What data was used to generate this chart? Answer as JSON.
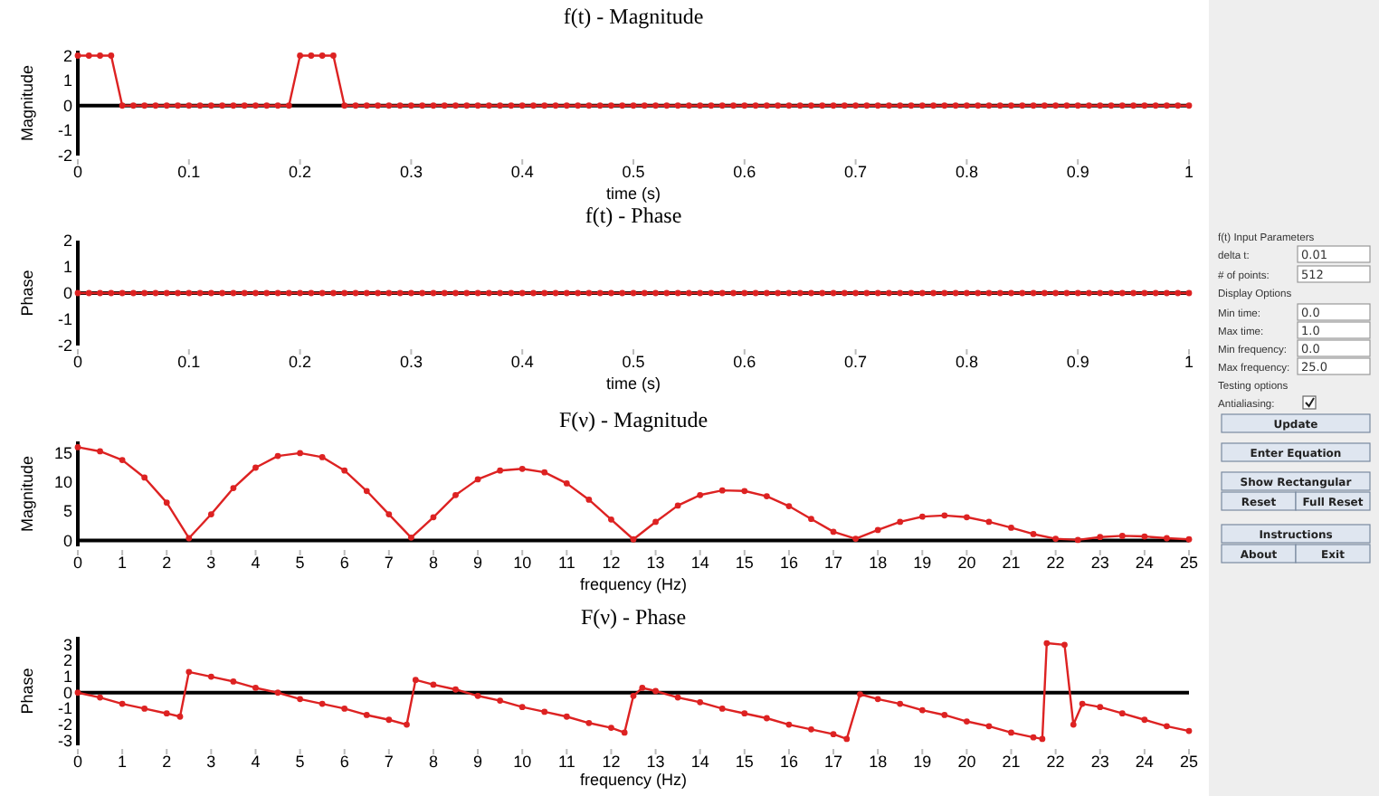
{
  "chart_data": [
    {
      "type": "line",
      "title": "f(t) - Magnitude",
      "xlabel": "time (s)",
      "ylabel": "Magnitude",
      "marker": "circle",
      "xlim": [
        0,
        1
      ],
      "ylim": [
        -2,
        2.2
      ],
      "xticks": [
        0,
        0.1,
        0.2,
        0.3,
        0.4,
        0.5,
        0.6,
        0.7,
        0.8,
        0.9,
        1
      ],
      "yticks": [
        -2,
        -1,
        0,
        1,
        2
      ],
      "x": [
        0,
        0.01,
        0.02,
        0.03,
        0.04,
        0.05,
        0.06,
        0.07,
        0.08,
        0.09,
        0.1,
        0.11,
        0.12,
        0.13,
        0.14,
        0.15,
        0.16,
        0.17,
        0.18,
        0.19,
        0.2,
        0.21,
        0.22,
        0.23,
        0.24,
        0.25,
        0.26,
        0.27,
        0.28,
        0.29,
        0.3,
        0.31,
        0.32,
        0.33,
        0.34,
        0.35,
        0.36,
        0.37,
        0.38,
        0.39,
        0.4,
        0.41,
        0.42,
        0.43,
        0.44,
        0.45,
        0.46,
        0.47,
        0.48,
        0.49,
        0.5,
        0.51,
        0.52,
        0.53,
        0.54,
        0.55,
        0.56,
        0.57,
        0.58,
        0.59,
        0.6,
        0.61,
        0.62,
        0.63,
        0.64,
        0.65,
        0.66,
        0.67,
        0.68,
        0.69,
        0.7,
        0.71,
        0.72,
        0.73,
        0.74,
        0.75,
        0.76,
        0.77,
        0.78,
        0.79,
        0.8,
        0.81,
        0.82,
        0.83,
        0.84,
        0.85,
        0.86,
        0.87,
        0.88,
        0.89,
        0.9,
        0.91,
        0.92,
        0.93,
        0.94,
        0.95,
        0.96,
        0.97,
        0.98,
        0.99,
        1
      ],
      "series": [
        {
          "color": "#dd2222",
          "values": [
            2,
            2,
            2,
            2,
            0,
            0,
            0,
            0,
            0,
            0,
            0,
            0,
            0,
            0,
            0,
            0,
            0,
            0,
            0,
            0,
            2,
            2,
            2,
            2,
            0,
            0,
            0,
            0,
            0,
            0,
            0,
            0,
            0,
            0,
            0,
            0,
            0,
            0,
            0,
            0,
            0,
            0,
            0,
            0,
            0,
            0,
            0,
            0,
            0,
            0,
            0,
            0,
            0,
            0,
            0,
            0,
            0,
            0,
            0,
            0,
            0,
            0,
            0,
            0,
            0,
            0,
            0,
            0,
            0,
            0,
            0,
            0,
            0,
            0,
            0,
            0,
            0,
            0,
            0,
            0,
            0,
            0,
            0,
            0,
            0,
            0,
            0,
            0,
            0,
            0,
            0,
            0,
            0,
            0,
            0,
            0,
            0,
            0,
            0,
            0,
            0
          ]
        }
      ]
    },
    {
      "type": "line",
      "title": "f(t) - Phase",
      "xlabel": "time (s)",
      "ylabel": "Phase",
      "marker": "circle",
      "xlim": [
        0,
        1
      ],
      "ylim": [
        -2,
        2
      ],
      "xticks": [
        0,
        0.1,
        0.2,
        0.3,
        0.4,
        0.5,
        0.6,
        0.7,
        0.8,
        0.9,
        1
      ],
      "yticks": [
        -2,
        -1,
        0,
        1,
        2
      ],
      "x": [
        0,
        0.01,
        0.02,
        0.03,
        0.04,
        0.05,
        0.06,
        0.07,
        0.08,
        0.09,
        0.1,
        0.11,
        0.12,
        0.13,
        0.14,
        0.15,
        0.16,
        0.17,
        0.18,
        0.19,
        0.2,
        0.21,
        0.22,
        0.23,
        0.24,
        0.25,
        0.26,
        0.27,
        0.28,
        0.29,
        0.3,
        0.31,
        0.32,
        0.33,
        0.34,
        0.35,
        0.36,
        0.37,
        0.38,
        0.39,
        0.4,
        0.41,
        0.42,
        0.43,
        0.44,
        0.45,
        0.46,
        0.47,
        0.48,
        0.49,
        0.5,
        0.51,
        0.52,
        0.53,
        0.54,
        0.55,
        0.56,
        0.57,
        0.58,
        0.59,
        0.6,
        0.61,
        0.62,
        0.63,
        0.64,
        0.65,
        0.66,
        0.67,
        0.68,
        0.69,
        0.7,
        0.71,
        0.72,
        0.73,
        0.74,
        0.75,
        0.76,
        0.77,
        0.78,
        0.79,
        0.8,
        0.81,
        0.82,
        0.83,
        0.84,
        0.85,
        0.86,
        0.87,
        0.88,
        0.89,
        0.9,
        0.91,
        0.92,
        0.93,
        0.94,
        0.95,
        0.96,
        0.97,
        0.98,
        0.99,
        1
      ],
      "series": [
        {
          "color": "#dd2222",
          "values": [
            0,
            0,
            0,
            0,
            0,
            0,
            0,
            0,
            0,
            0,
            0,
            0,
            0,
            0,
            0,
            0,
            0,
            0,
            0,
            0,
            0,
            0,
            0,
            0,
            0,
            0,
            0,
            0,
            0,
            0,
            0,
            0,
            0,
            0,
            0,
            0,
            0,
            0,
            0,
            0,
            0,
            0,
            0,
            0,
            0,
            0,
            0,
            0,
            0,
            0,
            0,
            0,
            0,
            0,
            0,
            0,
            0,
            0,
            0,
            0,
            0,
            0,
            0,
            0,
            0,
            0,
            0,
            0,
            0,
            0,
            0,
            0,
            0,
            0,
            0,
            0,
            0,
            0,
            0,
            0,
            0,
            0,
            0,
            0,
            0,
            0,
            0,
            0,
            0,
            0,
            0,
            0,
            0,
            0,
            0,
            0,
            0,
            0,
            0,
            0,
            0
          ]
        }
      ]
    },
    {
      "type": "line",
      "title": "F(ν) - Magnitude",
      "xlabel": "frequency (Hz)",
      "ylabel": "Magnitude",
      "marker": "circle",
      "xlim": [
        0,
        25
      ],
      "ylim": [
        -1,
        17
      ],
      "xticks": [
        0,
        1,
        2,
        3,
        4,
        5,
        6,
        7,
        8,
        9,
        10,
        11,
        12,
        13,
        14,
        15,
        16,
        17,
        18,
        19,
        20,
        21,
        22,
        23,
        24,
        25
      ],
      "yticks": [
        0,
        5,
        10,
        15
      ],
      "x": [
        0,
        0.5,
        1,
        1.5,
        2,
        2.5,
        3,
        3.5,
        4,
        4.5,
        5,
        5.5,
        6,
        6.5,
        7,
        7.5,
        8,
        8.5,
        9,
        9.5,
        10,
        10.5,
        11,
        11.5,
        12,
        12.5,
        13,
        13.5,
        14,
        14.5,
        15,
        15.5,
        16,
        16.5,
        17,
        17.5,
        18,
        18.5,
        19,
        19.5,
        20,
        20.5,
        21,
        21.5,
        22,
        22.5,
        23,
        23.5,
        24,
        24.5,
        25
      ],
      "series": [
        {
          "color": "#dd2222",
          "values": [
            16,
            15.3,
            13.8,
            10.8,
            6.5,
            0.4,
            4.5,
            9,
            12.5,
            14.5,
            15,
            14.3,
            12,
            8.5,
            4.5,
            0.5,
            4,
            7.8,
            10.5,
            12,
            12.3,
            11.7,
            9.8,
            7,
            3.6,
            0.2,
            3.2,
            6,
            7.8,
            8.6,
            8.5,
            7.6,
            5.9,
            3.7,
            1.5,
            0.3,
            1.8,
            3.2,
            4.1,
            4.3,
            4,
            3.2,
            2.2,
            1.1,
            0.3,
            0.1,
            0.6,
            0.8,
            0.7,
            0.4,
            0.2
          ]
        }
      ]
    },
    {
      "type": "line",
      "title": "F(ν) - Phase",
      "xlabel": "frequency (Hz)",
      "ylabel": "Phase",
      "marker": "circle",
      "xlim": [
        0,
        25
      ],
      "ylim": [
        -3.3,
        3.5
      ],
      "xticks": [
        0,
        1,
        2,
        3,
        4,
        5,
        6,
        7,
        8,
        9,
        10,
        11,
        12,
        13,
        14,
        15,
        16,
        17,
        18,
        19,
        20,
        21,
        22,
        23,
        24,
        25
      ],
      "yticks": [
        -3,
        -2,
        -1,
        0,
        1,
        2,
        3
      ],
      "x": [
        0,
        0.5,
        1,
        1.5,
        2,
        2.3,
        2.5,
        3,
        3.5,
        4,
        4.5,
        5,
        5.5,
        6,
        6.5,
        7,
        7.4,
        7.6,
        8,
        8.5,
        9,
        9.5,
        10,
        10.5,
        11,
        11.5,
        12,
        12.3,
        12.5,
        12.7,
        13,
        13.5,
        14,
        14.5,
        15,
        15.5,
        16,
        16.5,
        17,
        17.3,
        17.6,
        18,
        18.5,
        19,
        19.5,
        20,
        20.5,
        21,
        21.5,
        21.7,
        21.8,
        22.2,
        22.4,
        22.6,
        23,
        23.5,
        24,
        24.5,
        25
      ],
      "series": [
        {
          "color": "#dd2222",
          "values": [
            0,
            -0.3,
            -0.7,
            -1,
            -1.3,
            -1.5,
            1.3,
            1,
            0.7,
            0.3,
            0,
            -0.4,
            -0.7,
            -1,
            -1.4,
            -1.7,
            -2,
            0.8,
            0.5,
            0.2,
            -0.2,
            -0.5,
            -0.9,
            -1.2,
            -1.5,
            -1.9,
            -2.2,
            -2.5,
            -0.2,
            0.3,
            0.1,
            -0.3,
            -0.6,
            -1,
            -1.3,
            -1.6,
            -2,
            -2.3,
            -2.6,
            -2.9,
            -0.1,
            -0.4,
            -0.7,
            -1.1,
            -1.4,
            -1.8,
            -2.1,
            -2.5,
            -2.8,
            -2.9,
            3.1,
            3,
            -2,
            -0.7,
            -0.9,
            -1.3,
            -1.7,
            -2.1,
            -2.4
          ]
        }
      ]
    },
    {
      "type": "other",
      "annotations": [
        "f(t) Input Parameters",
        "delta t:",
        "0.01",
        "# of points:",
        "512",
        "Display Options",
        "Min time:",
        "0.0",
        "Max time:",
        "1.0",
        "Min frequency:",
        "0.0",
        "Max frequency:",
        "25.0",
        "Testing options",
        "Antialiasing:",
        "Update",
        "Enter Equation",
        "Show Rectangular",
        "Reset",
        "Full Reset",
        "Instructions",
        "About",
        "Exit"
      ]
    }
  ]
}
